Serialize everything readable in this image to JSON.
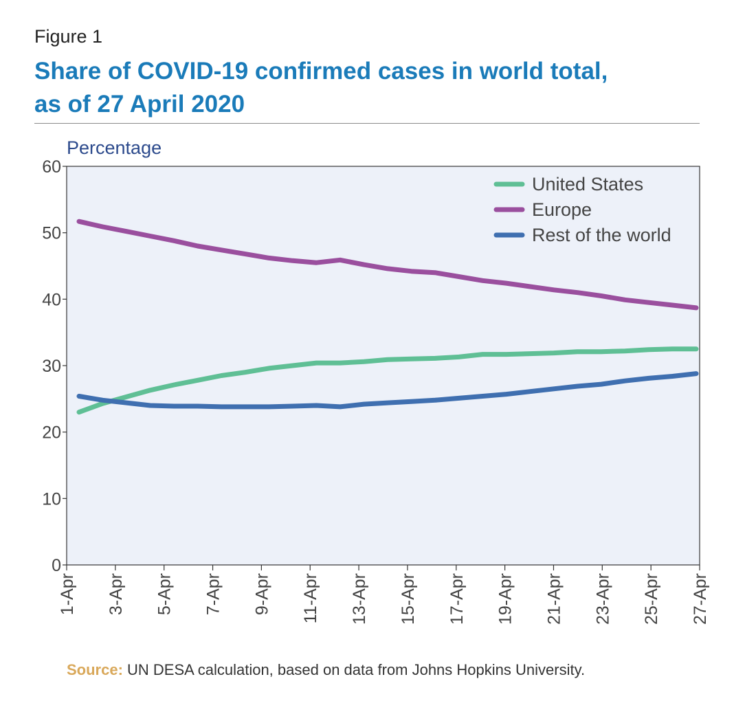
{
  "figure_label": "Figure 1",
  "title_line1": "Share of COVID-19 confirmed cases in world total,",
  "title_line2": "as of 27 April 2020",
  "source_label": "Source:",
  "source_text": " UN DESA calculation, based on data from Johns Hopkins University.",
  "chart_data": {
    "type": "line",
    "title": "Share of COVID-19 confirmed cases in world total, as of 27 April 2020",
    "ylabel": "Percentage",
    "xlabel": "",
    "ylim": [
      0,
      60
    ],
    "yticks": [
      0,
      10,
      20,
      30,
      40,
      50,
      60
    ],
    "grid": false,
    "legend_position": "top-right",
    "x_tick_labels": [
      "1-Apr",
      "3-Apr",
      "5-Apr",
      "7-Apr",
      "9-Apr",
      "11-Apr",
      "13-Apr",
      "15-Apr",
      "17-Apr",
      "19-Apr",
      "21-Apr",
      "23-Apr",
      "25-Apr",
      "27-Apr"
    ],
    "x": [
      "1-Apr",
      "2-Apr",
      "3-Apr",
      "4-Apr",
      "5-Apr",
      "6-Apr",
      "7-Apr",
      "8-Apr",
      "9-Apr",
      "10-Apr",
      "11-Apr",
      "12-Apr",
      "13-Apr",
      "14-Apr",
      "15-Apr",
      "16-Apr",
      "17-Apr",
      "18-Apr",
      "19-Apr",
      "20-Apr",
      "21-Apr",
      "22-Apr",
      "23-Apr",
      "24-Apr",
      "25-Apr",
      "26-Apr",
      "27-Apr"
    ],
    "series": [
      {
        "name": "United States",
        "color": "#5fbf95",
        "values": [
          23.0,
          24.3,
          25.3,
          26.3,
          27.1,
          27.8,
          28.5,
          29.0,
          29.6,
          30.0,
          30.4,
          30.4,
          30.6,
          30.9,
          31.0,
          31.1,
          31.3,
          31.7,
          31.7,
          31.8,
          31.9,
          32.1,
          32.1,
          32.2,
          32.4,
          32.5,
          32.5
        ]
      },
      {
        "name": "Europe",
        "color": "#9a4f9e",
        "values": [
          51.7,
          50.9,
          50.2,
          49.5,
          48.8,
          48.0,
          47.4,
          46.8,
          46.2,
          45.8,
          45.5,
          45.9,
          45.2,
          44.6,
          44.2,
          44.0,
          43.4,
          42.8,
          42.4,
          41.9,
          41.4,
          41.0,
          40.5,
          39.9,
          39.5,
          39.1,
          38.7
        ]
      },
      {
        "name": "Rest of the world",
        "color": "#3f6fb0",
        "values": [
          25.4,
          24.8,
          24.4,
          24.0,
          23.9,
          23.9,
          23.8,
          23.8,
          23.8,
          23.9,
          24.0,
          23.8,
          24.2,
          24.4,
          24.6,
          24.8,
          25.1,
          25.4,
          25.7,
          26.1,
          26.5,
          26.9,
          27.2,
          27.7,
          28.1,
          28.4,
          28.8
        ]
      }
    ]
  }
}
